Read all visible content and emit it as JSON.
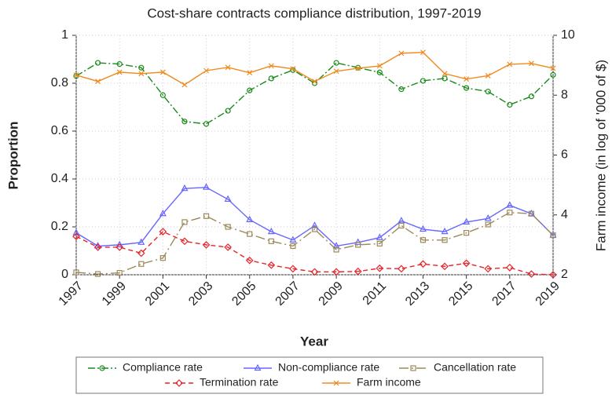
{
  "chart_data": {
    "type": "line",
    "title": "Cost-share contracts compliance distribution, 1997-2019",
    "xlabel": "Year",
    "ylabel": "Proportion",
    "y2label": "Farm income (in log of '000 of $)",
    "x": [
      1997,
      1998,
      1999,
      2000,
      2001,
      2002,
      2003,
      2004,
      2005,
      2006,
      2007,
      2008,
      2009,
      2010,
      2011,
      2012,
      2013,
      2014,
      2015,
      2016,
      2017,
      2018,
      2019
    ],
    "xlim": [
      1997,
      2019
    ],
    "xticks": [
      1997,
      1999,
      2001,
      2003,
      2005,
      2007,
      2009,
      2011,
      2013,
      2015,
      2017,
      2019
    ],
    "ylim": [
      0,
      1
    ],
    "yticks": [
      0,
      0.2,
      0.4,
      0.6,
      0.8,
      1
    ],
    "y2lim": [
      2,
      10
    ],
    "y2ticks": [
      2,
      4,
      6,
      8,
      10
    ],
    "grid": true,
    "legend": "bottom",
    "series": [
      {
        "name": "Compliance rate",
        "color": "#1a8a1a",
        "marker": "circle",
        "dash": "9 3 2 3",
        "values": [
          0.83,
          0.885,
          0.88,
          0.865,
          0.75,
          0.64,
          0.63,
          0.685,
          0.77,
          0.82,
          0.855,
          0.8,
          0.885,
          0.865,
          0.845,
          0.775,
          0.81,
          0.82,
          0.78,
          0.765,
          0.71,
          0.745,
          0.835
        ]
      },
      {
        "name": "Non-compliance rate",
        "color": "#6666ff",
        "marker": "triangle",
        "dash": "none",
        "values": [
          0.175,
          0.12,
          0.125,
          0.135,
          0.255,
          0.36,
          0.365,
          0.315,
          0.23,
          0.18,
          0.145,
          0.205,
          0.12,
          0.135,
          0.155,
          0.225,
          0.19,
          0.18,
          0.22,
          0.235,
          0.29,
          0.255,
          0.165
        ]
      },
      {
        "name": "Cancellation rate",
        "color": "#9c8a5a",
        "marker": "square",
        "dash": "12 4 2 4",
        "values": [
          0.01,
          0.003,
          0.008,
          0.045,
          0.07,
          0.22,
          0.245,
          0.2,
          0.17,
          0.14,
          0.12,
          0.19,
          0.105,
          0.125,
          0.13,
          0.205,
          0.145,
          0.145,
          0.175,
          0.21,
          0.26,
          0.255,
          0.165
        ]
      },
      {
        "name": "Termination rate",
        "color": "#e8232a",
        "marker": "diamond",
        "dash": "6 4",
        "values": [
          0.16,
          0.115,
          0.115,
          0.09,
          0.18,
          0.14,
          0.125,
          0.115,
          0.06,
          0.04,
          0.025,
          0.012,
          0.012,
          0.014,
          0.027,
          0.025,
          0.045,
          0.035,
          0.048,
          0.025,
          0.03,
          0.003,
          0.0
        ]
      },
      {
        "name": "Farm income",
        "color": "#f08a1e",
        "marker": "x",
        "dash": "none",
        "axis": "y2",
        "values": [
          8.67,
          8.46,
          8.77,
          8.72,
          8.77,
          8.35,
          8.82,
          8.93,
          8.75,
          8.98,
          8.88,
          8.46,
          8.8,
          8.9,
          8.98,
          9.4,
          9.43,
          8.72,
          8.54,
          8.65,
          9.03,
          9.06,
          8.9
        ]
      }
    ]
  }
}
